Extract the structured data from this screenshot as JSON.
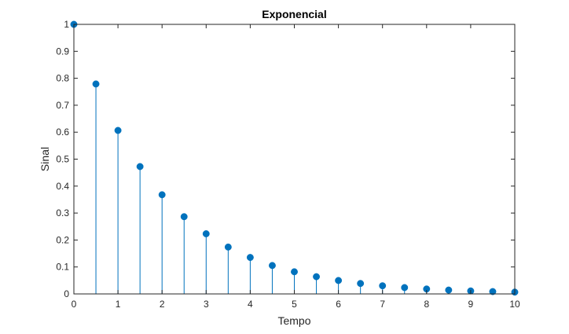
{
  "chart_data": {
    "type": "stem",
    "title": "Exponencial",
    "xlabel": "Tempo",
    "ylabel": "Sinal",
    "xlim": [
      0,
      10
    ],
    "ylim": [
      0,
      1
    ],
    "xticks": [
      0,
      1,
      2,
      3,
      4,
      5,
      6,
      7,
      8,
      9,
      10
    ],
    "yticks": [
      0,
      0.1,
      0.2,
      0.3,
      0.4,
      0.5,
      0.6,
      0.7,
      0.8,
      0.9,
      1
    ],
    "grid": false,
    "color": "#0072BD",
    "series": [
      {
        "x": [
          0,
          0.5,
          1,
          1.5,
          2,
          2.5,
          3,
          3.5,
          4,
          4.5,
          5,
          5.5,
          6,
          6.5,
          7,
          7.5,
          8,
          8.5,
          9,
          9.5,
          10
        ],
        "y": [
          1,
          0.7788,
          0.6065,
          0.4724,
          0.3679,
          0.2865,
          0.2231,
          0.1738,
          0.1353,
          0.1054,
          0.0821,
          0.0639,
          0.0498,
          0.0388,
          0.0302,
          0.0235,
          0.0183,
          0.0143,
          0.0111,
          0.0087,
          0.0067
        ]
      }
    ]
  }
}
